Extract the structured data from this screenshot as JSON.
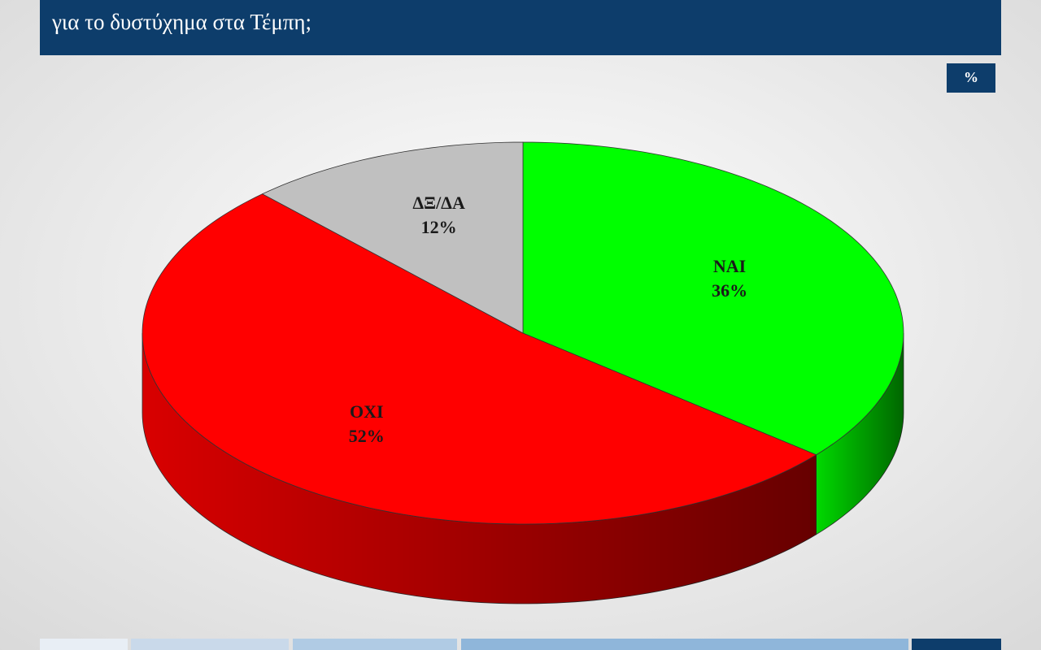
{
  "chart_data": {
    "type": "pie3d",
    "title": "για το δυστύχημα στα Τέμπη;",
    "unit": "%",
    "categories": [
      "ΝΑΙ",
      "ΟΧΙ",
      "ΔΞ/ΔΑ"
    ],
    "values": [
      36,
      52,
      12
    ],
    "value_labels": [
      "36%",
      "52%",
      "12%"
    ],
    "colors": [
      "#00ff00",
      "#ff0000",
      "#c0c0c0"
    ]
  }
}
